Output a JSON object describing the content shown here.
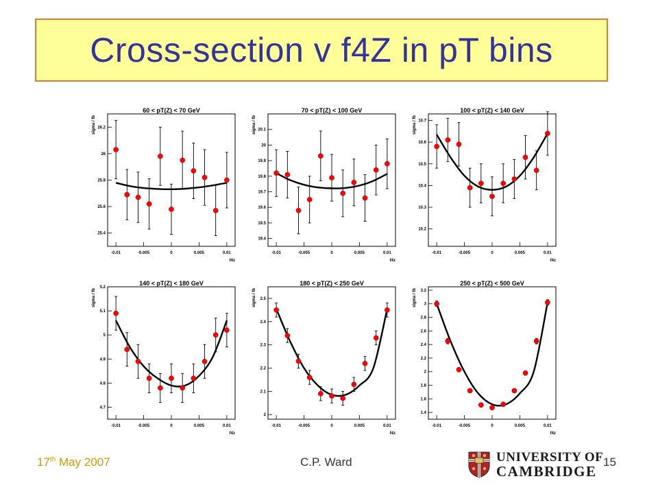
{
  "slide": {
    "title": "Cross-section v f4Z in pT bins",
    "footer": {
      "date_main": "17",
      "date_sup": "th",
      "date_rest": " May 2007",
      "author": "C.P. Ward",
      "page": "15"
    },
    "logo": {
      "line1": "UNIVERSITY OF",
      "line2": "CAMBRIDGE"
    }
  },
  "colors": {
    "title_text": "#333399",
    "title_bg": "#ffff99",
    "title_border": "#e07b39",
    "marker": "#ff0000",
    "date_text": "#cc9900"
  },
  "chart_data": [
    {
      "type": "scatter",
      "title": "60 < pT(Z) < 70 GeV",
      "xlabel": "f4z",
      "ylabel": "sigma / fb",
      "xlim": [
        -0.0115,
        0.0115
      ],
      "ylim": [
        25.3,
        26.3
      ],
      "xticks": [
        -0.01,
        -0.005,
        0,
        0.005,
        0.01
      ],
      "xtick_labels": [
        "-0.01",
        "-0.005",
        "0",
        "0.005",
        "0.01"
      ],
      "yticks": [
        25.4,
        25.6,
        25.8,
        26,
        26.2
      ],
      "ytick_labels": [
        "25.4",
        "25.6",
        "25.8",
        "26",
        "26.2"
      ],
      "x": [
        -0.01,
        -0.008,
        -0.006,
        -0.004,
        -0.002,
        0,
        0.002,
        0.004,
        0.006,
        0.008,
        0.01
      ],
      "y": [
        26.03,
        25.69,
        25.67,
        25.62,
        25.98,
        25.58,
        25.95,
        25.87,
        25.82,
        25.57,
        25.8
      ],
      "yerr": [
        0.22,
        0.19,
        0.19,
        0.19,
        0.22,
        0.19,
        0.22,
        0.21,
        0.21,
        0.19,
        0.21
      ],
      "fit": [
        25.78,
        25.755,
        25.74,
        25.733,
        25.731,
        25.735,
        25.745,
        25.76,
        25.78
      ]
    },
    {
      "type": "scatter",
      "title": "70 < pT(Z) < 100 GeV",
      "xlabel": "f4z",
      "ylabel": "sigma / fb",
      "xlim": [
        -0.0115,
        0.0115
      ],
      "ylim": [
        19.35,
        20.2
      ],
      "xticks": [
        -0.01,
        -0.005,
        0,
        0.005,
        0.01
      ],
      "xtick_labels": [
        "-0.01",
        "-0.005",
        "0",
        "0.005",
        "0.01"
      ],
      "yticks": [
        19.4,
        19.5,
        19.6,
        19.7,
        19.8,
        19.9,
        20,
        20.1
      ],
      "ytick_labels": [
        "19.4",
        "19.5",
        "19.6",
        "19.7",
        "19.8",
        "19.9",
        "20",
        "20.1"
      ],
      "x": [
        -0.01,
        -0.008,
        -0.006,
        -0.004,
        -0.002,
        0,
        0.002,
        0.004,
        0.006,
        0.008,
        0.01
      ],
      "y": [
        19.82,
        19.81,
        19.58,
        19.65,
        19.93,
        19.79,
        19.69,
        19.76,
        19.66,
        19.84,
        19.88
      ],
      "yerr": [
        0.15,
        0.15,
        0.15,
        0.15,
        0.16,
        0.15,
        0.15,
        0.15,
        0.15,
        0.16,
        0.16
      ],
      "fit": [
        19.82,
        19.775,
        19.745,
        19.728,
        19.722,
        19.725,
        19.74,
        19.77,
        19.815
      ]
    },
    {
      "type": "scatter",
      "title": "100 < pT(Z) < 140 GeV",
      "xlabel": "f4z",
      "ylabel": "sigma / fb",
      "xlim": [
        -0.0115,
        0.0115
      ],
      "ylim": [
        10.12,
        10.73
      ],
      "xticks": [
        -0.01,
        -0.005,
        0,
        0.005,
        0.01
      ],
      "xtick_labels": [
        "-0.01",
        "-0.005",
        "0",
        "0.005",
        "0.01"
      ],
      "yticks": [
        10.2,
        10.3,
        10.4,
        10.5,
        10.6,
        10.7
      ],
      "ytick_labels": [
        "10.2",
        "10.3",
        "10.4",
        "10.5",
        "10.6",
        "10.7"
      ],
      "x": [
        -0.01,
        -0.008,
        -0.006,
        -0.004,
        -0.002,
        0,
        0.002,
        0.004,
        0.006,
        0.008,
        0.01
      ],
      "y": [
        10.58,
        10.61,
        10.59,
        10.39,
        10.41,
        10.35,
        10.41,
        10.43,
        10.53,
        10.47,
        10.64
      ],
      "yerr": [
        0.1,
        0.1,
        0.1,
        0.09,
        0.09,
        0.09,
        0.09,
        0.09,
        0.1,
        0.09,
        0.1
      ],
      "fit": [
        10.635,
        10.53,
        10.445,
        10.395,
        10.38,
        10.395,
        10.445,
        10.53,
        10.64
      ]
    },
    {
      "type": "scatter",
      "title": "140 < pT(Z) < 180 GeV",
      "xlabel": "f4z",
      "ylabel": "sigma / fb",
      "xlim": [
        -0.0115,
        0.0115
      ],
      "ylim": [
        4.65,
        5.2
      ],
      "xticks": [
        -0.01,
        -0.005,
        0,
        0.005,
        0.01
      ],
      "xtick_labels": [
        "-0.01",
        "-0.005",
        "0",
        "0.005",
        "0.01"
      ],
      "yticks": [
        4.7,
        4.8,
        4.9,
        5,
        5.1,
        5.2
      ],
      "ytick_labels": [
        "4.7",
        "4.8",
        "4.9",
        "5",
        "5.1",
        "5.2"
      ],
      "x": [
        -0.01,
        -0.008,
        -0.006,
        -0.004,
        -0.002,
        0,
        0.002,
        0.004,
        0.006,
        0.008,
        0.01
      ],
      "y": [
        5.09,
        4.94,
        4.89,
        4.82,
        4.78,
        4.82,
        4.78,
        4.82,
        4.89,
        5.0,
        5.02
      ],
      "yerr": [
        0.07,
        0.07,
        0.07,
        0.06,
        0.06,
        0.06,
        0.06,
        0.06,
        0.07,
        0.07,
        0.07
      ],
      "fit": [
        5.06,
        4.95,
        4.87,
        4.82,
        4.79,
        4.79,
        4.83,
        4.91,
        5.06
      ]
    },
    {
      "type": "scatter",
      "title": "180 < pT(Z) < 250 GeV",
      "xlabel": "f4z",
      "ylabel": "sigma / fb",
      "xlim": [
        -0.0115,
        0.0115
      ],
      "ylim": [
        1.98,
        2.55
      ],
      "xticks": [
        -0.01,
        -0.005,
        0,
        0.005,
        0.01
      ],
      "xtick_labels": [
        "-0.01",
        "-0.005",
        "0",
        "0.005",
        "0.01"
      ],
      "yticks": [
        2,
        2.1,
        2.2,
        2.3,
        2.4,
        2.5
      ],
      "ytick_labels": [
        "2",
        "2.1",
        "2.2",
        "2.3",
        "2.4",
        "2.5"
      ],
      "x": [
        -0.01,
        -0.008,
        -0.006,
        -0.004,
        -0.002,
        0,
        0.002,
        0.004,
        0.006,
        0.008,
        0.01
      ],
      "y": [
        2.45,
        2.34,
        2.23,
        2.16,
        2.09,
        2.08,
        2.07,
        2.13,
        2.22,
        2.33,
        2.45
      ],
      "yerr": [
        0.03,
        0.03,
        0.03,
        0.03,
        0.03,
        0.03,
        0.03,
        0.03,
        0.03,
        0.03,
        0.03
      ],
      "fit": [
        2.455,
        2.315,
        2.2,
        2.125,
        2.085,
        2.085,
        2.125,
        2.2,
        2.455
      ]
    },
    {
      "type": "scatter",
      "title": "250 < pT(Z) < 500 GeV",
      "xlabel": "f4z",
      "ylabel": "sigma / fb",
      "xlim": [
        -0.0115,
        0.0115
      ],
      "ylim": [
        1.3,
        3.25
      ],
      "xticks": [
        -0.01,
        -0.005,
        0,
        0.005,
        0.01
      ],
      "xtick_labels": [
        "-0.01",
        "-0.005",
        "0",
        "0.005",
        "0.01"
      ],
      "yticks": [
        1.4,
        1.6,
        1.8,
        2,
        2.2,
        2.4,
        2.6,
        2.8,
        3,
        3.2
      ],
      "ytick_labels": [
        "1.4",
        "1.6",
        "1.8",
        "2",
        "2.2",
        "2.4",
        "2.6",
        "2.8",
        "3",
        "3.2"
      ],
      "x": [
        -0.01,
        -0.008,
        -0.006,
        -0.004,
        -0.002,
        0,
        0.002,
        0.004,
        0.006,
        0.008,
        0.01
      ],
      "y": [
        3.0,
        2.45,
        2.03,
        1.72,
        1.51,
        1.47,
        1.52,
        1.72,
        1.98,
        2.45,
        3.02
      ],
      "yerr": [
        0.04,
        0.04,
        0.03,
        0.03,
        0.03,
        0.03,
        0.03,
        0.03,
        0.03,
        0.04,
        0.04
      ],
      "fit": [
        3.0,
        2.45,
        2.0,
        1.68,
        1.52,
        1.52,
        1.68,
        2.0,
        3.02
      ]
    }
  ]
}
